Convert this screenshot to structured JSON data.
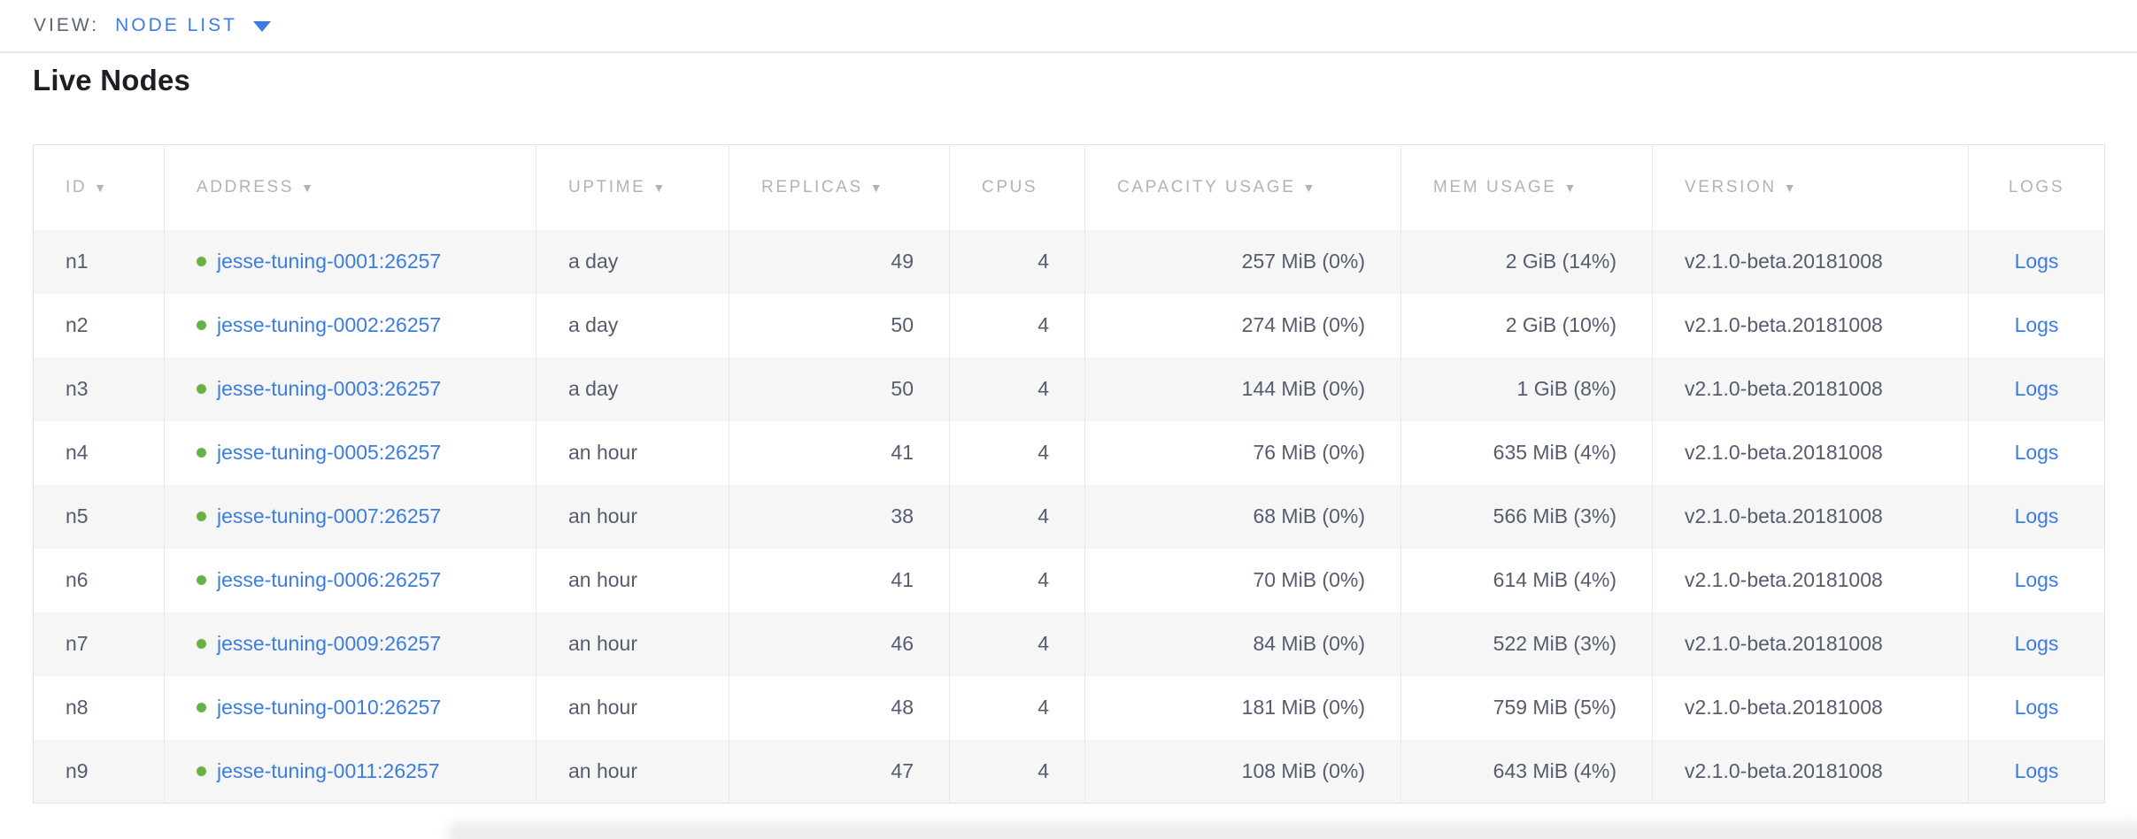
{
  "view_bar": {
    "label": "VIEW:",
    "selected_view": "NODE LIST"
  },
  "page": {
    "title": "Live Nodes"
  },
  "icons": {
    "sort_desc": "▼"
  },
  "table": {
    "columns": [
      {
        "label": "ID",
        "sortable": true
      },
      {
        "label": "ADDRESS",
        "sortable": true
      },
      {
        "label": "UPTIME",
        "sortable": true
      },
      {
        "label": "REPLICAS",
        "sortable": true
      },
      {
        "label": "CPUS",
        "sortable": false
      },
      {
        "label": "CAPACITY USAGE",
        "sortable": true
      },
      {
        "label": "MEM USAGE",
        "sortable": true
      },
      {
        "label": "VERSION",
        "sortable": true
      },
      {
        "label": "LOGS",
        "sortable": false
      }
    ],
    "rows": [
      {
        "id": "n1",
        "address": "jesse-tuning-0001:26257",
        "uptime": "a day",
        "replicas": "49",
        "cpus": "4",
        "capacity": "257 MiB (0%)",
        "mem": "2 GiB (14%)",
        "version": "v2.1.0-beta.20181008",
        "logs": "Logs"
      },
      {
        "id": "n2",
        "address": "jesse-tuning-0002:26257",
        "uptime": "a day",
        "replicas": "50",
        "cpus": "4",
        "capacity": "274 MiB (0%)",
        "mem": "2 GiB (10%)",
        "version": "v2.1.0-beta.20181008",
        "logs": "Logs"
      },
      {
        "id": "n3",
        "address": "jesse-tuning-0003:26257",
        "uptime": "a day",
        "replicas": "50",
        "cpus": "4",
        "capacity": "144 MiB (0%)",
        "mem": "1 GiB (8%)",
        "version": "v2.1.0-beta.20181008",
        "logs": "Logs"
      },
      {
        "id": "n4",
        "address": "jesse-tuning-0005:26257",
        "uptime": "an hour",
        "replicas": "41",
        "cpus": "4",
        "capacity": "76 MiB (0%)",
        "mem": "635 MiB (4%)",
        "version": "v2.1.0-beta.20181008",
        "logs": "Logs"
      },
      {
        "id": "n5",
        "address": "jesse-tuning-0007:26257",
        "uptime": "an hour",
        "replicas": "38",
        "cpus": "4",
        "capacity": "68 MiB (0%)",
        "mem": "566 MiB (3%)",
        "version": "v2.1.0-beta.20181008",
        "logs": "Logs"
      },
      {
        "id": "n6",
        "address": "jesse-tuning-0006:26257",
        "uptime": "an hour",
        "replicas": "41",
        "cpus": "4",
        "capacity": "70 MiB (0%)",
        "mem": "614 MiB (4%)",
        "version": "v2.1.0-beta.20181008",
        "logs": "Logs"
      },
      {
        "id": "n7",
        "address": "jesse-tuning-0009:26257",
        "uptime": "an hour",
        "replicas": "46",
        "cpus": "4",
        "capacity": "84 MiB (0%)",
        "mem": "522 MiB (3%)",
        "version": "v2.1.0-beta.20181008",
        "logs": "Logs"
      },
      {
        "id": "n8",
        "address": "jesse-tuning-0010:26257",
        "uptime": "an hour",
        "replicas": "48",
        "cpus": "4",
        "capacity": "181 MiB (0%)",
        "mem": "759 MiB (5%)",
        "version": "v2.1.0-beta.20181008",
        "logs": "Logs"
      },
      {
        "id": "n9",
        "address": "jesse-tuning-0011:26257",
        "uptime": "an hour",
        "replicas": "47",
        "cpus": "4",
        "capacity": "108 MiB (0%)",
        "mem": "643 MiB (4%)",
        "version": "v2.1.0-beta.20181008",
        "logs": "Logs"
      }
    ]
  },
  "colors": {
    "accent_blue": "#3b7de2",
    "link_blue": "#3b7ce2",
    "node_live_dot": "#64b346"
  }
}
